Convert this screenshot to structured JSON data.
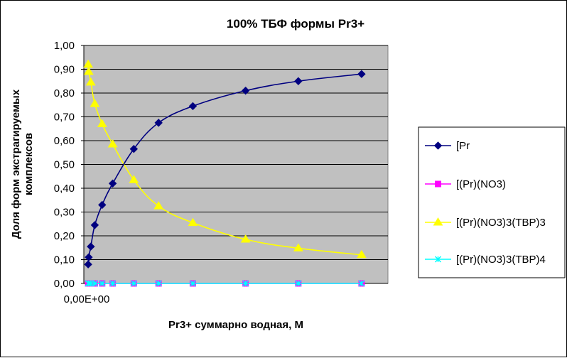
{
  "chart_data": {
    "type": "line",
    "title": "100%  ТБФ  формы Pr3+",
    "xlabel": "Pr3+ суммарно  водная, М",
    "ylabel_lines": [
      "Доля форм экстрагируемых",
      "комплексов"
    ],
    "x_tick_label": "0,00E+00",
    "ylim": [
      0,
      1
    ],
    "y_ticks": [
      "0,00",
      "0,10",
      "0,20",
      "0,30",
      "0,40",
      "0,50",
      "0,60",
      "0,70",
      "0,80",
      "0,90",
      "1,00"
    ],
    "plot_background": "#c0c0c0",
    "grid": true,
    "legend_position": "right",
    "x": [
      0.0015,
      0.0025,
      0.0065,
      0.014,
      0.028,
      0.048,
      0.088,
      0.135,
      0.2,
      0.3,
      0.4,
      0.52
    ],
    "series": [
      {
        "name": "[Pr",
        "color": "#000080",
        "marker": "diamond",
        "values": [
          0.08,
          0.11,
          0.155,
          0.245,
          0.33,
          0.42,
          0.565,
          0.675,
          0.745,
          0.81,
          0.85,
          0.88
        ]
      },
      {
        "name": "[(Pr)(NO3)",
        "color": "#ff00ff",
        "marker": "square",
        "values": [
          0,
          0,
          0,
          0,
          0,
          0,
          0,
          0,
          0,
          0,
          0,
          0
        ]
      },
      {
        "name": "[(Pr)(NO3)3(TBP)3",
        "color": "#ffff00",
        "marker": "triangle",
        "values": [
          0.92,
          0.89,
          0.845,
          0.755,
          0.67,
          0.585,
          0.435,
          0.325,
          0.255,
          0.185,
          0.148,
          0.12
        ]
      },
      {
        "name": "[(Pr)(NO3)3(TBP)4",
        "color": "#00ffff",
        "marker": "x",
        "values": [
          0,
          0,
          0,
          0,
          0,
          0,
          0,
          0,
          0,
          0,
          0,
          0
        ]
      }
    ]
  }
}
